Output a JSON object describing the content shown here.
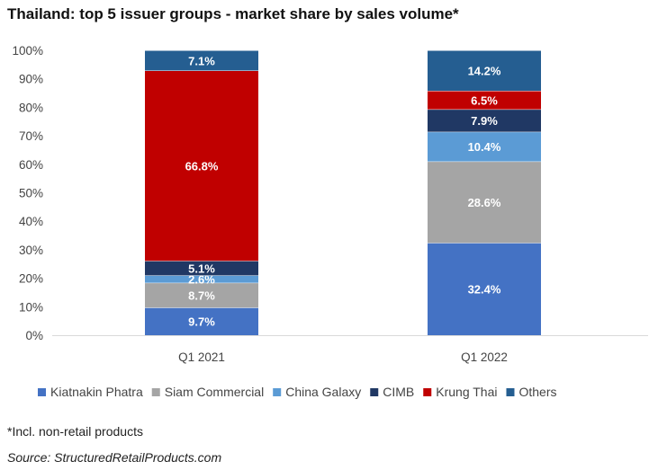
{
  "title": "Thailand: top 5 issuer groups - market share by sales volume*",
  "footnote": "*Incl. non-retail products",
  "source": "Source: StructuredRetailProducts.com",
  "chart_data": {
    "type": "bar",
    "stacked": true,
    "title": "Thailand: top 5 issuer groups - market share by sales volume*",
    "xlabel": "",
    "ylabel": "",
    "categories": [
      "Q1 2021",
      "Q1 2022"
    ],
    "ylim": [
      0,
      100
    ],
    "yticks": [
      0,
      10,
      20,
      30,
      40,
      50,
      60,
      70,
      80,
      90,
      100
    ],
    "ytick_labels": [
      "0%",
      "10%",
      "20%",
      "30%",
      "40%",
      "50%",
      "60%",
      "70%",
      "80%",
      "90%",
      "100%"
    ],
    "grid": false,
    "legend_position": "bottom",
    "series": [
      {
        "name": "Kiatnakin Phatra",
        "color": "#4472c4",
        "values": [
          9.7,
          32.4
        ],
        "labels": [
          "9.7%",
          "32.4%"
        ]
      },
      {
        "name": "Siam Commercial",
        "color": "#a5a5a5",
        "values": [
          8.7,
          28.6
        ],
        "labels": [
          "8.7%",
          "28.6%"
        ]
      },
      {
        "name": "China Galaxy",
        "color": "#5b9bd5",
        "values": [
          2.6,
          10.4
        ],
        "labels": [
          "2.6%",
          "10.4%"
        ]
      },
      {
        "name": "CIMB",
        "color": "#203864",
        "values": [
          5.1,
          7.9
        ],
        "labels": [
          "5.1%",
          "7.9%"
        ]
      },
      {
        "name": "Krung Thai",
        "color": "#c00000",
        "values": [
          66.8,
          6.5
        ],
        "labels": [
          "66.8%",
          "6.5%"
        ]
      },
      {
        "name": "Others",
        "color": "#255e91",
        "values": [
          7.1,
          14.2
        ],
        "labels": [
          "7.1%",
          "14.2%"
        ]
      }
    ]
  }
}
